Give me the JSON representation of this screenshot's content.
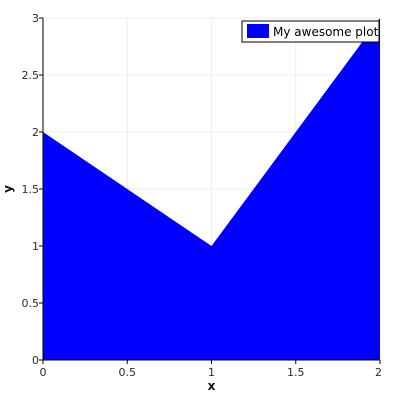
{
  "chart_data": {
    "type": "area",
    "title": "",
    "xlabel": "x",
    "ylabel": "y",
    "xlim": [
      0,
      2
    ],
    "ylim": [
      0,
      3
    ],
    "x_ticks": [
      0,
      0.5,
      1,
      1.5,
      2
    ],
    "x_tick_labels": [
      "0",
      "0.5",
      "1",
      "1.5",
      "2"
    ],
    "y_ticks": [
      0,
      0.5,
      1,
      1.5,
      2,
      2.5,
      3
    ],
    "y_tick_labels": [
      "0",
      "0.5",
      "1",
      "1.5",
      "2",
      "2.5",
      "3"
    ],
    "grid": true,
    "legend_position": "top-right",
    "series": [
      {
        "name": "My awesome plot",
        "x": [
          0,
          1,
          2
        ],
        "y": [
          2,
          1,
          3
        ],
        "color": "#0000ff"
      }
    ]
  }
}
